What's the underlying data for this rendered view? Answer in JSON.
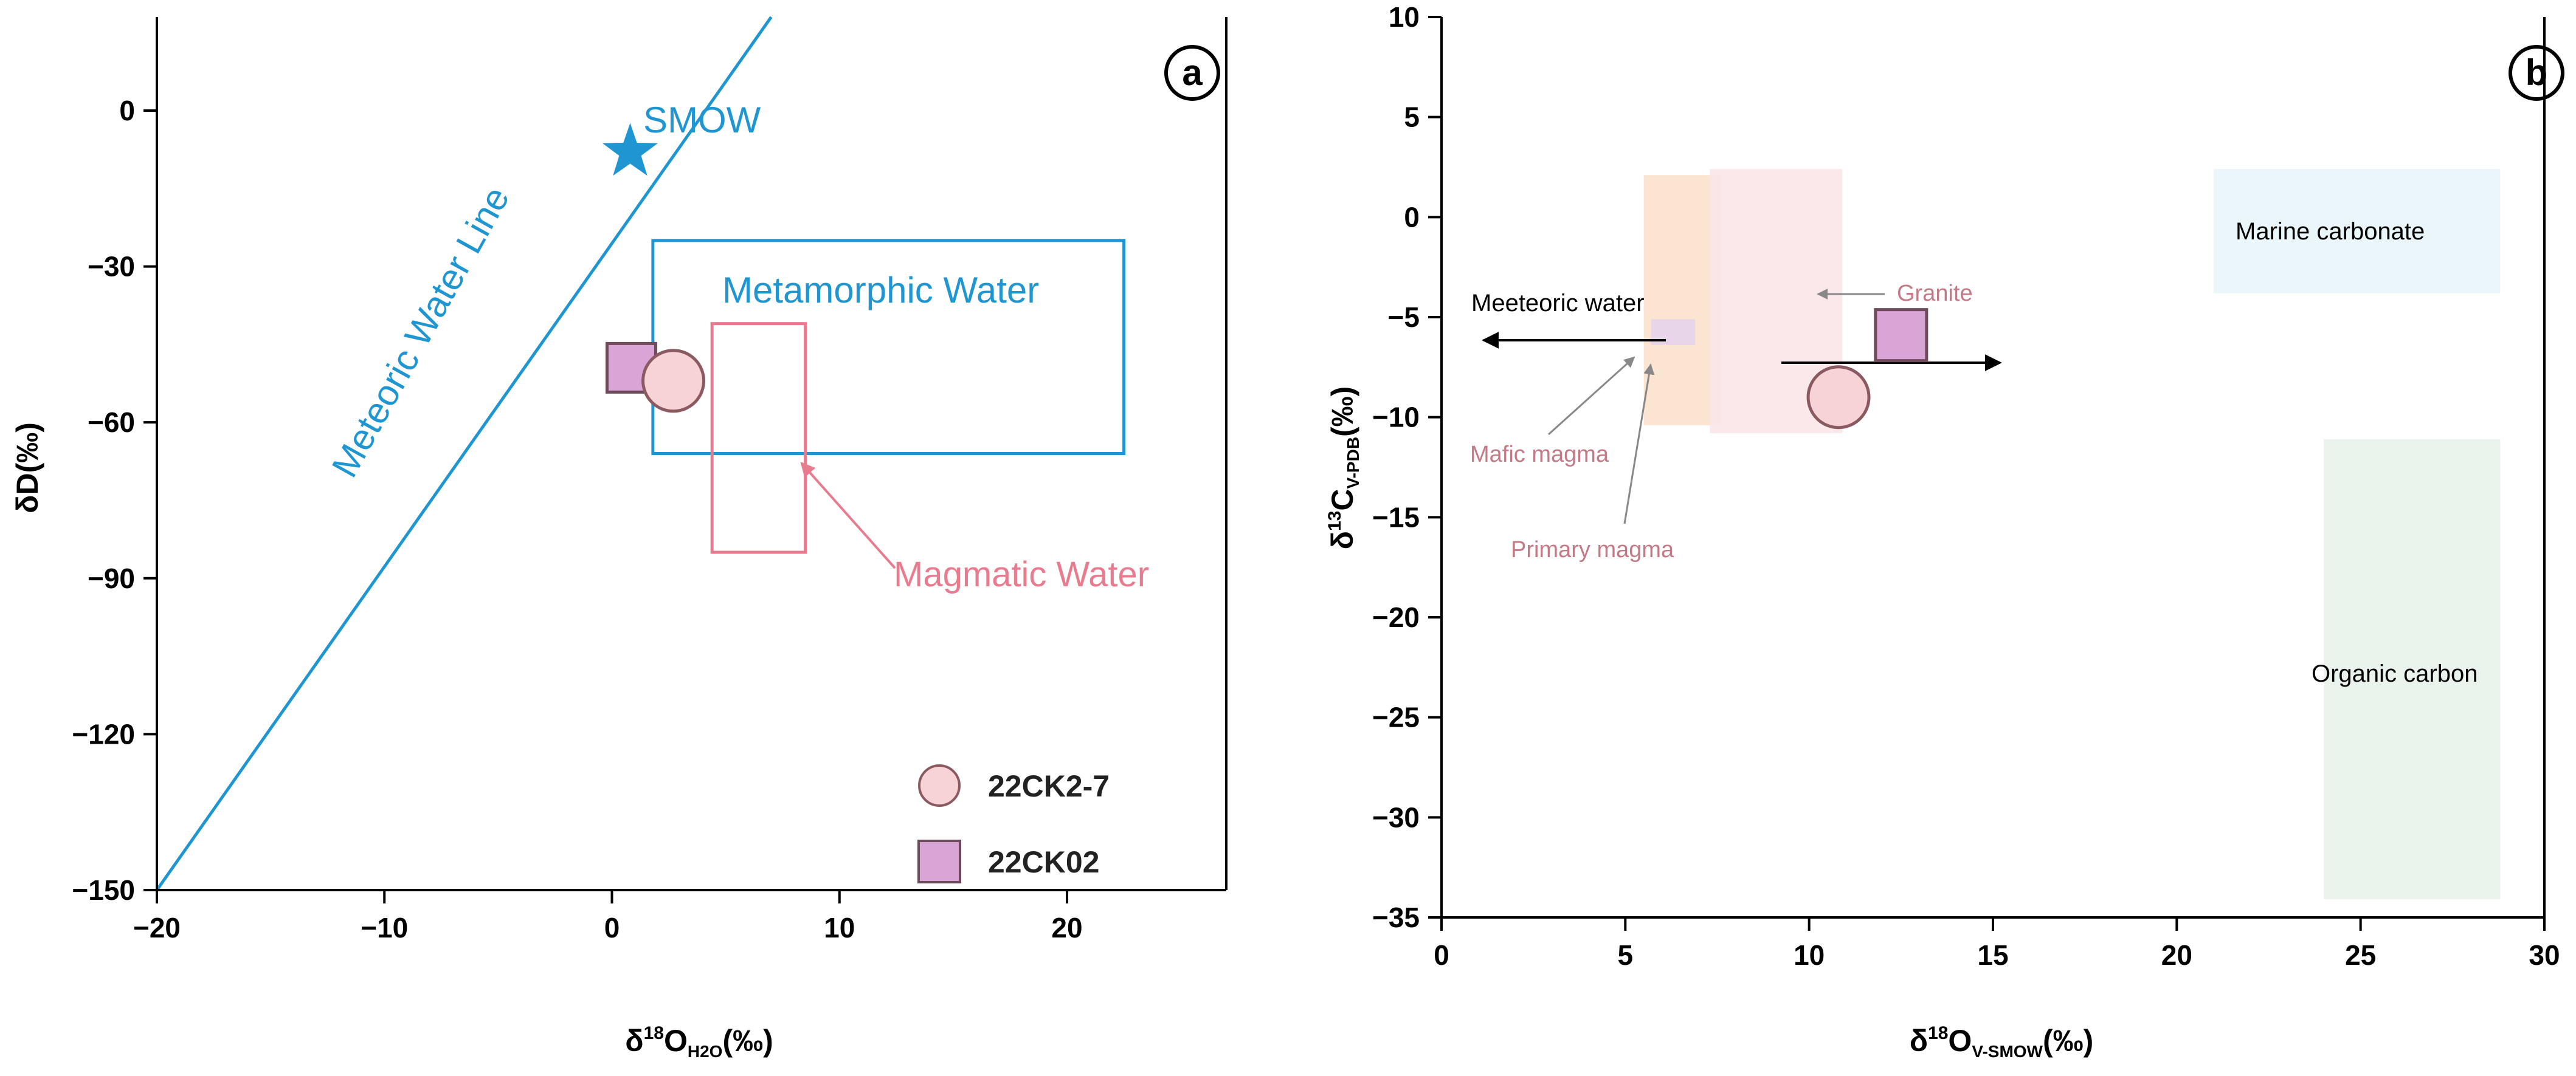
{
  "chart_data": [
    {
      "panel": "a",
      "type": "scatter",
      "xlabel": {
        "main": "δ",
        "sup": "18",
        "o": "O",
        "sub": "H2O",
        "unit": "(‰)"
      },
      "ylabel": "δD(‰)",
      "xlim": [
        -20,
        27
      ],
      "ylim": [
        -150,
        18
      ],
      "xticks": [
        -20,
        -10,
        0,
        10,
        20
      ],
      "xtick_labels": [
        "−20",
        "−10",
        "0",
        "10",
        "20"
      ],
      "yticks": [
        -150,
        -120,
        -90,
        -60,
        -30,
        0
      ],
      "ytick_labels": [
        "−150",
        "−120",
        "−90",
        "−60",
        "−30",
        "0"
      ],
      "meteoric_line": {
        "label": "Meteoric Water Line",
        "x": [
          -20,
          7
        ],
        "y": [
          -150,
          18
        ],
        "color": "#1f96d2"
      },
      "smow": {
        "label": "SMOW",
        "x": 0.8,
        "y": -8,
        "color": "#1f96d2"
      },
      "regions": [
        {
          "label": "Metamorphic Water",
          "x": [
            1.8,
            22.5
          ],
          "y": [
            -66,
            -25
          ],
          "color": "#1f96d2"
        },
        {
          "label": "Magmatic Water",
          "x": [
            4.4,
            8.5
          ],
          "y": [
            -85,
            -41
          ],
          "color": "#e87c8e"
        }
      ],
      "points": [
        {
          "name": "22CK2-7",
          "marker": "circle",
          "x": 2.7,
          "y": -52,
          "color": "#f7d3d6"
        },
        {
          "name": "22CK02",
          "marker": "square",
          "x": 0.8,
          "y": -49.5,
          "color": "#d9a4d6"
        }
      ],
      "legend": [
        "22CK2-7",
        "22CK02"
      ]
    },
    {
      "panel": "b",
      "type": "scatter",
      "xlabel": {
        "main": "δ",
        "sup": "18",
        "o": "O",
        "sub": "V-SMOW",
        "unit": "(‰)"
      },
      "ylabel": {
        "main": "δ",
        "sup": "13",
        "c": "C",
        "sub": "V-PDB",
        "unit": "(‰)"
      },
      "xlim": [
        0,
        30
      ],
      "ylim": [
        -35,
        10
      ],
      "xticks": [
        0,
        5,
        10,
        15,
        20,
        25,
        30
      ],
      "xtick_labels": [
        "0",
        "5",
        "10",
        "15",
        "20",
        "25",
        "30"
      ],
      "yticks": [
        -35,
        -30,
        -25,
        -20,
        -15,
        -10,
        -5,
        0,
        5,
        10
      ],
      "ytick_labels": [
        "−35",
        "−30",
        "−25",
        "−20",
        "−15",
        "−10",
        "−5",
        "0",
        "5",
        "10"
      ],
      "regions": [
        {
          "label": "Primary magma",
          "x": [
            5.5,
            7.6
          ],
          "y": [
            -10.4,
            2.1
          ],
          "color": "#fbe2cb"
        },
        {
          "label": "Granite",
          "x": [
            7.3,
            10.9
          ],
          "y": [
            -10.8,
            2.4
          ],
          "color": "#f9e6e8"
        },
        {
          "label": "Mafic magma",
          "x": [
            5.7,
            6.9
          ],
          "y": [
            -6.4,
            -5.1
          ],
          "color": "#e7d3ec"
        },
        {
          "label": "Marine carbonate",
          "x": [
            21,
            28.8
          ],
          "y": [
            -3.8,
            2.4
          ],
          "color": "#e8f5f9"
        },
        {
          "label": "Organic carbon",
          "x": [
            24,
            28.8
          ],
          "y": [
            -34.1,
            -11.1
          ],
          "color": "#e8f2ea"
        }
      ],
      "points": [
        {
          "name": "22CK2-7",
          "marker": "circle",
          "x": 10.8,
          "y": -9,
          "color": "#f7d3d6"
        },
        {
          "name": "22CK02",
          "marker": "square",
          "x": 12.5,
          "y": -5.9,
          "color": "#d9a4d6"
        }
      ],
      "annotations": [
        "Meeteoric water",
        "Granite",
        "Mafic magma",
        "Primary magma",
        "Marine carbonate",
        "Organic carbon"
      ]
    }
  ]
}
